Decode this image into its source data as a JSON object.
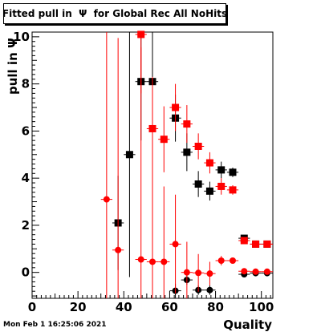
{
  "title": "Fitted pull in  Ψ  for Global Rec All NoHits",
  "timestamp": "Mon Feb  1 16:25:06 2021",
  "chart_data": {
    "type": "scatter",
    "title": "Fitted pull in  Ψ  for Global Rec All NoHits",
    "xlabel": "Quality",
    "ylabel": "pull in  Ψ",
    "xlim": [
      0,
      105
    ],
    "ylim": [
      -1.1,
      10.2
    ],
    "xticks": [
      0,
      20,
      40,
      60,
      80,
      100
    ],
    "yticks": [
      0,
      2,
      4,
      6,
      8,
      10
    ],
    "grid": false,
    "series": [
      {
        "color": "#000000",
        "marker": "square",
        "points": [
          {
            "x": 37.5,
            "y": 2.1,
            "yerr": 2.0
          },
          {
            "x": 42.5,
            "y": 5.0,
            "yerr": 5.2
          },
          {
            "x": 47.5,
            "y": 8.1,
            "yerr": 2.5
          },
          {
            "x": 52.5,
            "y": 8.1,
            "yerr": 2.3
          },
          {
            "x": 62.5,
            "y": 6.55,
            "yerr": 1.0
          },
          {
            "x": 67.5,
            "y": 5.1,
            "yerr": 0.8
          },
          {
            "x": 72.5,
            "y": 3.75,
            "yerr": 0.55
          },
          {
            "x": 77.5,
            "y": 3.45,
            "yerr": 0.4
          },
          {
            "x": 82.5,
            "y": 4.35,
            "yerr": 0.35
          },
          {
            "x": 87.5,
            "y": 4.25,
            "yerr": 0.2
          },
          {
            "x": 92.5,
            "y": 1.45,
            "yerr": 0.08
          },
          {
            "x": 97.5,
            "y": 1.2,
            "yerr": 0.08
          },
          {
            "x": 102.5,
            "y": 1.2,
            "yerr": 0.08
          }
        ]
      },
      {
        "color": "#000000",
        "marker": "circle",
        "points": [
          {
            "x": 62.5,
            "y": -0.78,
            "yerr": 0.3
          },
          {
            "x": 67.5,
            "y": -0.32,
            "yerr": 0.2
          },
          {
            "x": 72.5,
            "y": -0.75,
            "yerr": 0.2
          },
          {
            "x": 77.5,
            "y": -0.75,
            "yerr": 0.2
          },
          {
            "x": 92.5,
            "y": -0.08,
            "yerr": 0.05
          },
          {
            "x": 97.5,
            "y": -0.03,
            "yerr": 0.05
          },
          {
            "x": 102.5,
            "y": -0.03,
            "yerr": 0.05
          }
        ]
      },
      {
        "color": "#ff0000",
        "marker": "square",
        "points": [
          {
            "x": 47.5,
            "y": 10.1,
            "yerr": 2.5
          },
          {
            "x": 52.5,
            "y": 6.1,
            "yerr": 2.2
          },
          {
            "x": 57.5,
            "y": 5.65,
            "yerr": 1.4
          },
          {
            "x": 62.5,
            "y": 7.0,
            "yerr": 1.0
          },
          {
            "x": 67.5,
            "y": 6.3,
            "yerr": 0.8
          },
          {
            "x": 72.5,
            "y": 5.35,
            "yerr": 0.55
          },
          {
            "x": 77.5,
            "y": 4.65,
            "yerr": 0.45
          },
          {
            "x": 82.5,
            "y": 3.65,
            "yerr": 0.35
          },
          {
            "x": 87.5,
            "y": 3.5,
            "yerr": 0.2
          },
          {
            "x": 92.5,
            "y": 1.35,
            "yerr": 0.08
          },
          {
            "x": 97.5,
            "y": 1.2,
            "yerr": 0.08
          },
          {
            "x": 102.5,
            "y": 1.2,
            "yerr": 0.08
          }
        ]
      },
      {
        "color": "#ff0000",
        "marker": "circle",
        "points": [
          {
            "x": 32.5,
            "y": 3.1,
            "yerr": 7.5
          },
          {
            "x": 37.5,
            "y": 0.95,
            "yerr": 9.0
          },
          {
            "x": 47.5,
            "y": 0.55,
            "yerr": 9.0
          },
          {
            "x": 52.5,
            "y": 0.45,
            "yerr": 4.0
          },
          {
            "x": 57.5,
            "y": 0.45,
            "yerr": 3.2
          },
          {
            "x": 62.5,
            "y": 1.2,
            "yerr": 2.1
          },
          {
            "x": 67.5,
            "y": 0.0,
            "yerr": 1.3
          },
          {
            "x": 72.5,
            "y": -0.02,
            "yerr": 0.8
          },
          {
            "x": 77.5,
            "y": -0.05,
            "yerr": 0.5
          },
          {
            "x": 82.5,
            "y": 0.5,
            "yerr": 0.2
          },
          {
            "x": 87.5,
            "y": 0.5,
            "yerr": 0.1
          },
          {
            "x": 92.5,
            "y": 0.05,
            "yerr": 0.05
          },
          {
            "x": 97.5,
            "y": 0.03,
            "yerr": 0.05
          },
          {
            "x": 102.5,
            "y": 0.03,
            "yerr": 0.05
          }
        ]
      }
    ]
  }
}
